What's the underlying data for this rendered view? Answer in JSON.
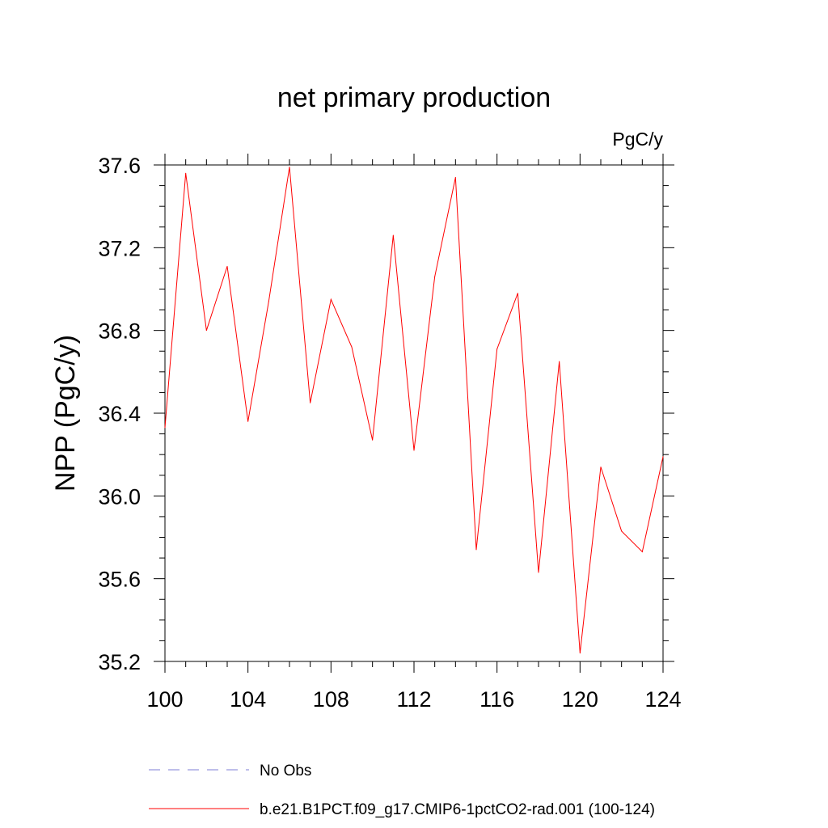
{
  "chart_data": {
    "type": "line",
    "title": "net primary production",
    "units_label": "PgC/y",
    "ylabel": "NPP  (PgC/y)",
    "xlabel": "",
    "xlim": [
      100,
      124
    ],
    "ylim": [
      35.2,
      37.6
    ],
    "xticks": [
      100,
      104,
      108,
      112,
      116,
      120,
      124
    ],
    "xtick_labels": [
      "100",
      "104",
      "108",
      "112",
      "116",
      "120",
      "124"
    ],
    "yticks": [
      35.2,
      35.6,
      36.0,
      36.4,
      36.8,
      37.2,
      37.6
    ],
    "ytick_labels": [
      "35.2",
      "35.6",
      "36.0",
      "36.4",
      "36.8",
      "37.2",
      "37.6"
    ],
    "x_minor_step": 1,
    "y_minor_step": 0.1,
    "grid": false,
    "legend_position": "bottom",
    "series": [
      {
        "name": "No Obs",
        "color": "#7d7dd6",
        "style": "dashed",
        "x": [],
        "values": []
      },
      {
        "name": "b.e21.B1PCT.f09_g17.CMIP6-1pctCO2-rad.001 (100-124)",
        "color": "#ff0000",
        "style": "solid",
        "x": [
          100,
          101,
          102,
          103,
          104,
          105,
          106,
          107,
          108,
          109,
          110,
          111,
          112,
          113,
          114,
          115,
          116,
          117,
          118,
          119,
          120,
          121,
          122,
          123,
          124
        ],
        "values": [
          36.33,
          37.56,
          36.8,
          37.11,
          36.36,
          36.94,
          37.59,
          36.45,
          36.95,
          36.72,
          36.27,
          37.26,
          36.22,
          37.06,
          37.54,
          35.74,
          36.71,
          36.98,
          35.63,
          36.65,
          35.24,
          36.14,
          35.83,
          35.73,
          36.19
        ]
      }
    ]
  }
}
